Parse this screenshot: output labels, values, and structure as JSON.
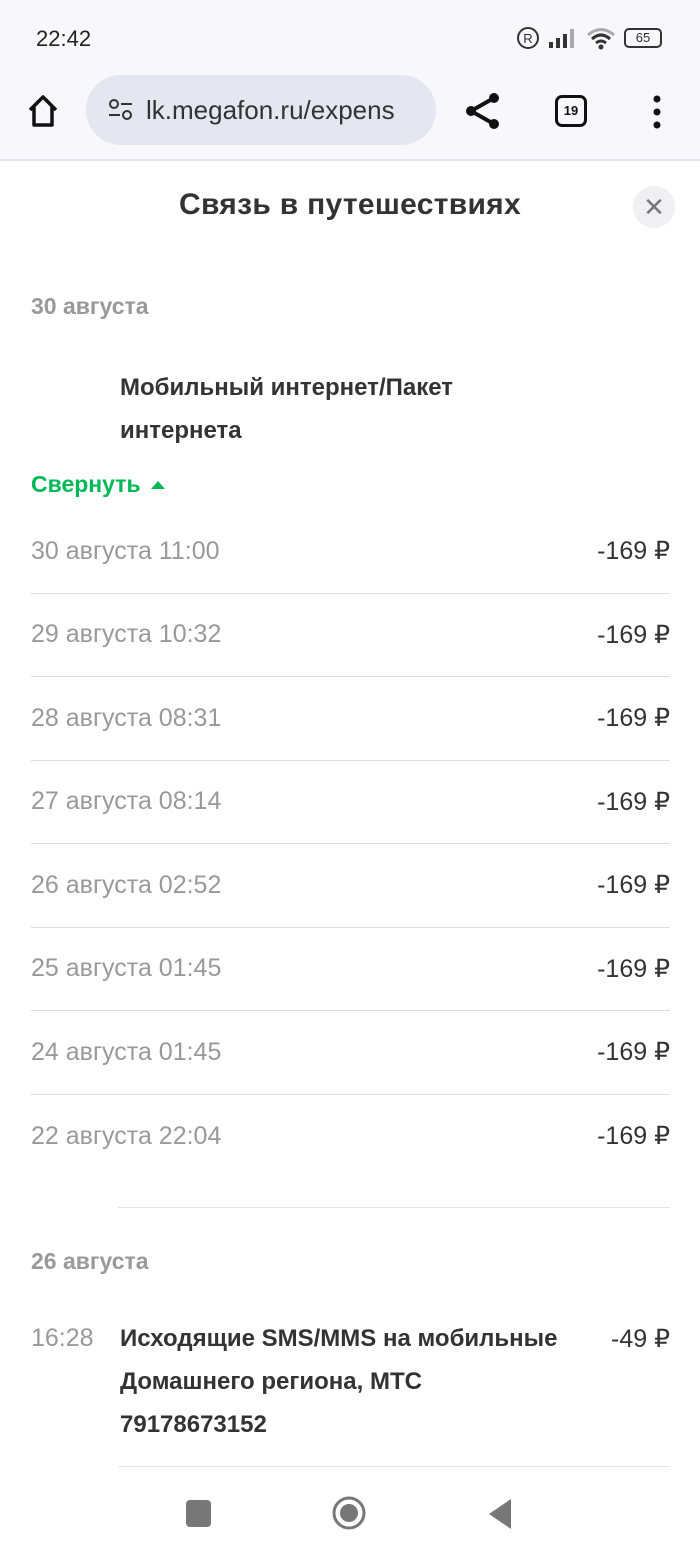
{
  "status_bar": {
    "time": "22:42",
    "battery": "65"
  },
  "browser": {
    "url": "lk.megafon.ru/expens",
    "tab_count": "19"
  },
  "modal": {
    "title": "Связь в путешествиях"
  },
  "groups": [
    {
      "date": "30 августа",
      "title": "Мобильный интернет/Пакет интернета",
      "collapse_label": "Свернуть",
      "rows": [
        {
          "date": "30 августа 11:00",
          "amount": "-169 ₽"
        },
        {
          "date": "29 августа 10:32",
          "amount": "-169 ₽"
        },
        {
          "date": "28 августа 08:31",
          "amount": "-169 ₽"
        },
        {
          "date": "27 августа 08:14",
          "amount": "-169 ₽"
        },
        {
          "date": "26 августа 02:52",
          "amount": "-169 ₽"
        },
        {
          "date": "25 августа 01:45",
          "amount": "-169 ₽"
        },
        {
          "date": "24 августа 01:45",
          "amount": "-169 ₽"
        },
        {
          "date": "22 августа 22:04",
          "amount": "-169 ₽"
        }
      ]
    },
    {
      "date": "26 августа",
      "time": "16:28",
      "title": "Исходящие SMS/MMS на мобильные Домашнего региона, МТС 79178673152",
      "amount": "-49 ₽"
    }
  ],
  "colors": {
    "accent": "#00b956"
  }
}
